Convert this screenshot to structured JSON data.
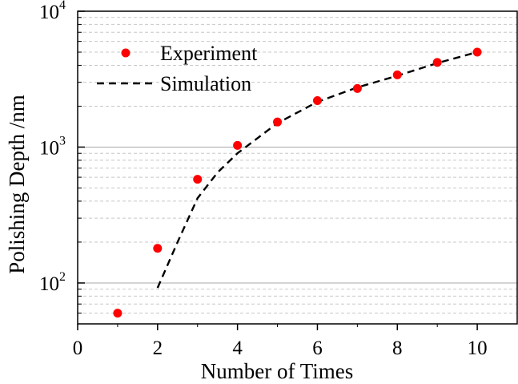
{
  "chart_data": {
    "type": "scatter",
    "xlabel": "Number of Times",
    "ylabel": "Polishing Depth /nm",
    "xlim": [
      0,
      11
    ],
    "ylim": [
      50,
      10000
    ],
    "yscale": "log",
    "x_ticks": [
      0,
      2,
      4,
      6,
      8,
      10
    ],
    "y_ticks": [
      {
        "base": "10",
        "exp": "2",
        "value": 100
      },
      {
        "base": "10",
        "exp": "3",
        "value": 1000
      },
      {
        "base": "10",
        "exp": "4",
        "value": 10000
      }
    ],
    "grid": "horizontal major and minor (log)",
    "legend_position": "top-left",
    "series": [
      {
        "name": "Experiment",
        "style": "markers",
        "color": "#ff0000",
        "x": [
          1,
          2,
          3,
          4,
          5,
          6,
          7,
          8,
          9,
          10
        ],
        "y": [
          60,
          180,
          580,
          1030,
          1530,
          2200,
          2700,
          3400,
          4200,
          5000
        ]
      },
      {
        "name": "Simulation",
        "style": "dashed",
        "color": "#000000",
        "x": [
          2,
          2.5,
          3,
          3.5,
          4,
          5,
          6,
          7,
          8,
          9,
          10
        ],
        "y": [
          92,
          200,
          420,
          650,
          900,
          1500,
          2150,
          2750,
          3350,
          4150,
          5000
        ]
      }
    ]
  }
}
